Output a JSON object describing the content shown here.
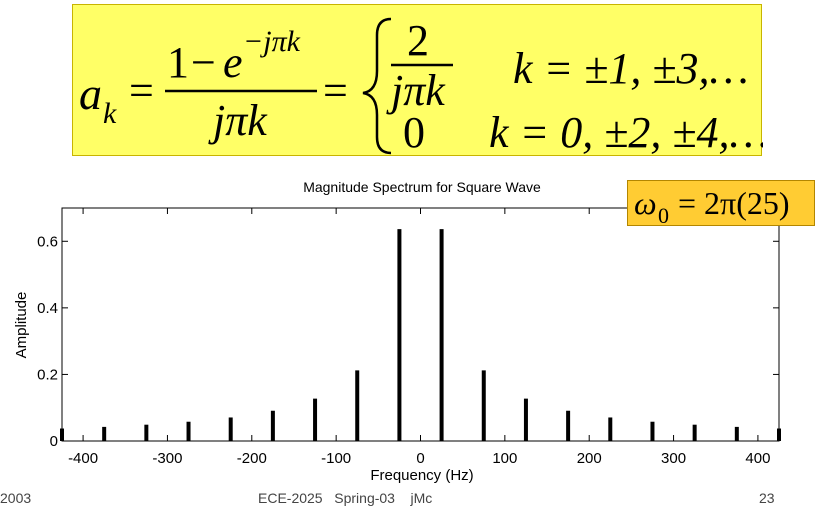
{
  "formula": {
    "lhs": "a",
    "lhs_sub": "k",
    "num_const": "1",
    "minus": "−",
    "num_exp_base": "e",
    "num_exp": "−jπk",
    "den": "jπk",
    "eq": "=",
    "case1_num": "2",
    "case1_den": "jπk",
    "case1_cond": "k = ±1, ±3,…",
    "case2_val": "0",
    "case2_cond": "k = 0, ±2, ±4,…"
  },
  "omega_annotation": {
    "symbol": "ω",
    "sub": "0",
    "rhs": "= 2π(25)"
  },
  "footer": {
    "left": "2003",
    "center": "ECE-2025   Spring-03    jMc",
    "page": "23"
  },
  "colors": {
    "formula_bg": "#ffff66",
    "omega_bg": "#ffcc33",
    "stem": "#000000"
  },
  "chart_data": {
    "type": "bar",
    "title": "Magnitude Spectrum for Square Wave",
    "xlabel": "Frequency   (Hz)",
    "ylabel": "Amplitude",
    "xlim": [
      -425,
      425
    ],
    "ylim": [
      0,
      0.7
    ],
    "xticks": [
      -400,
      -300,
      -200,
      -100,
      0,
      100,
      200,
      300,
      400
    ],
    "yticks": [
      0,
      0.2,
      0.4,
      0.6
    ],
    "grid": false,
    "series": [
      {
        "x": [
          -425,
          -375,
          -325,
          -275,
          -225,
          -175,
          -125,
          -75,
          -25,
          25,
          75,
          125,
          175,
          225,
          275,
          325,
          375,
          425
        ],
        "y": [
          0.0375,
          0.0424,
          0.049,
          0.0579,
          0.0707,
          0.0909,
          0.1273,
          0.2122,
          0.6366,
          0.6366,
          0.2122,
          0.1273,
          0.0909,
          0.0707,
          0.0579,
          0.049,
          0.0424,
          0.0375
        ]
      }
    ]
  }
}
